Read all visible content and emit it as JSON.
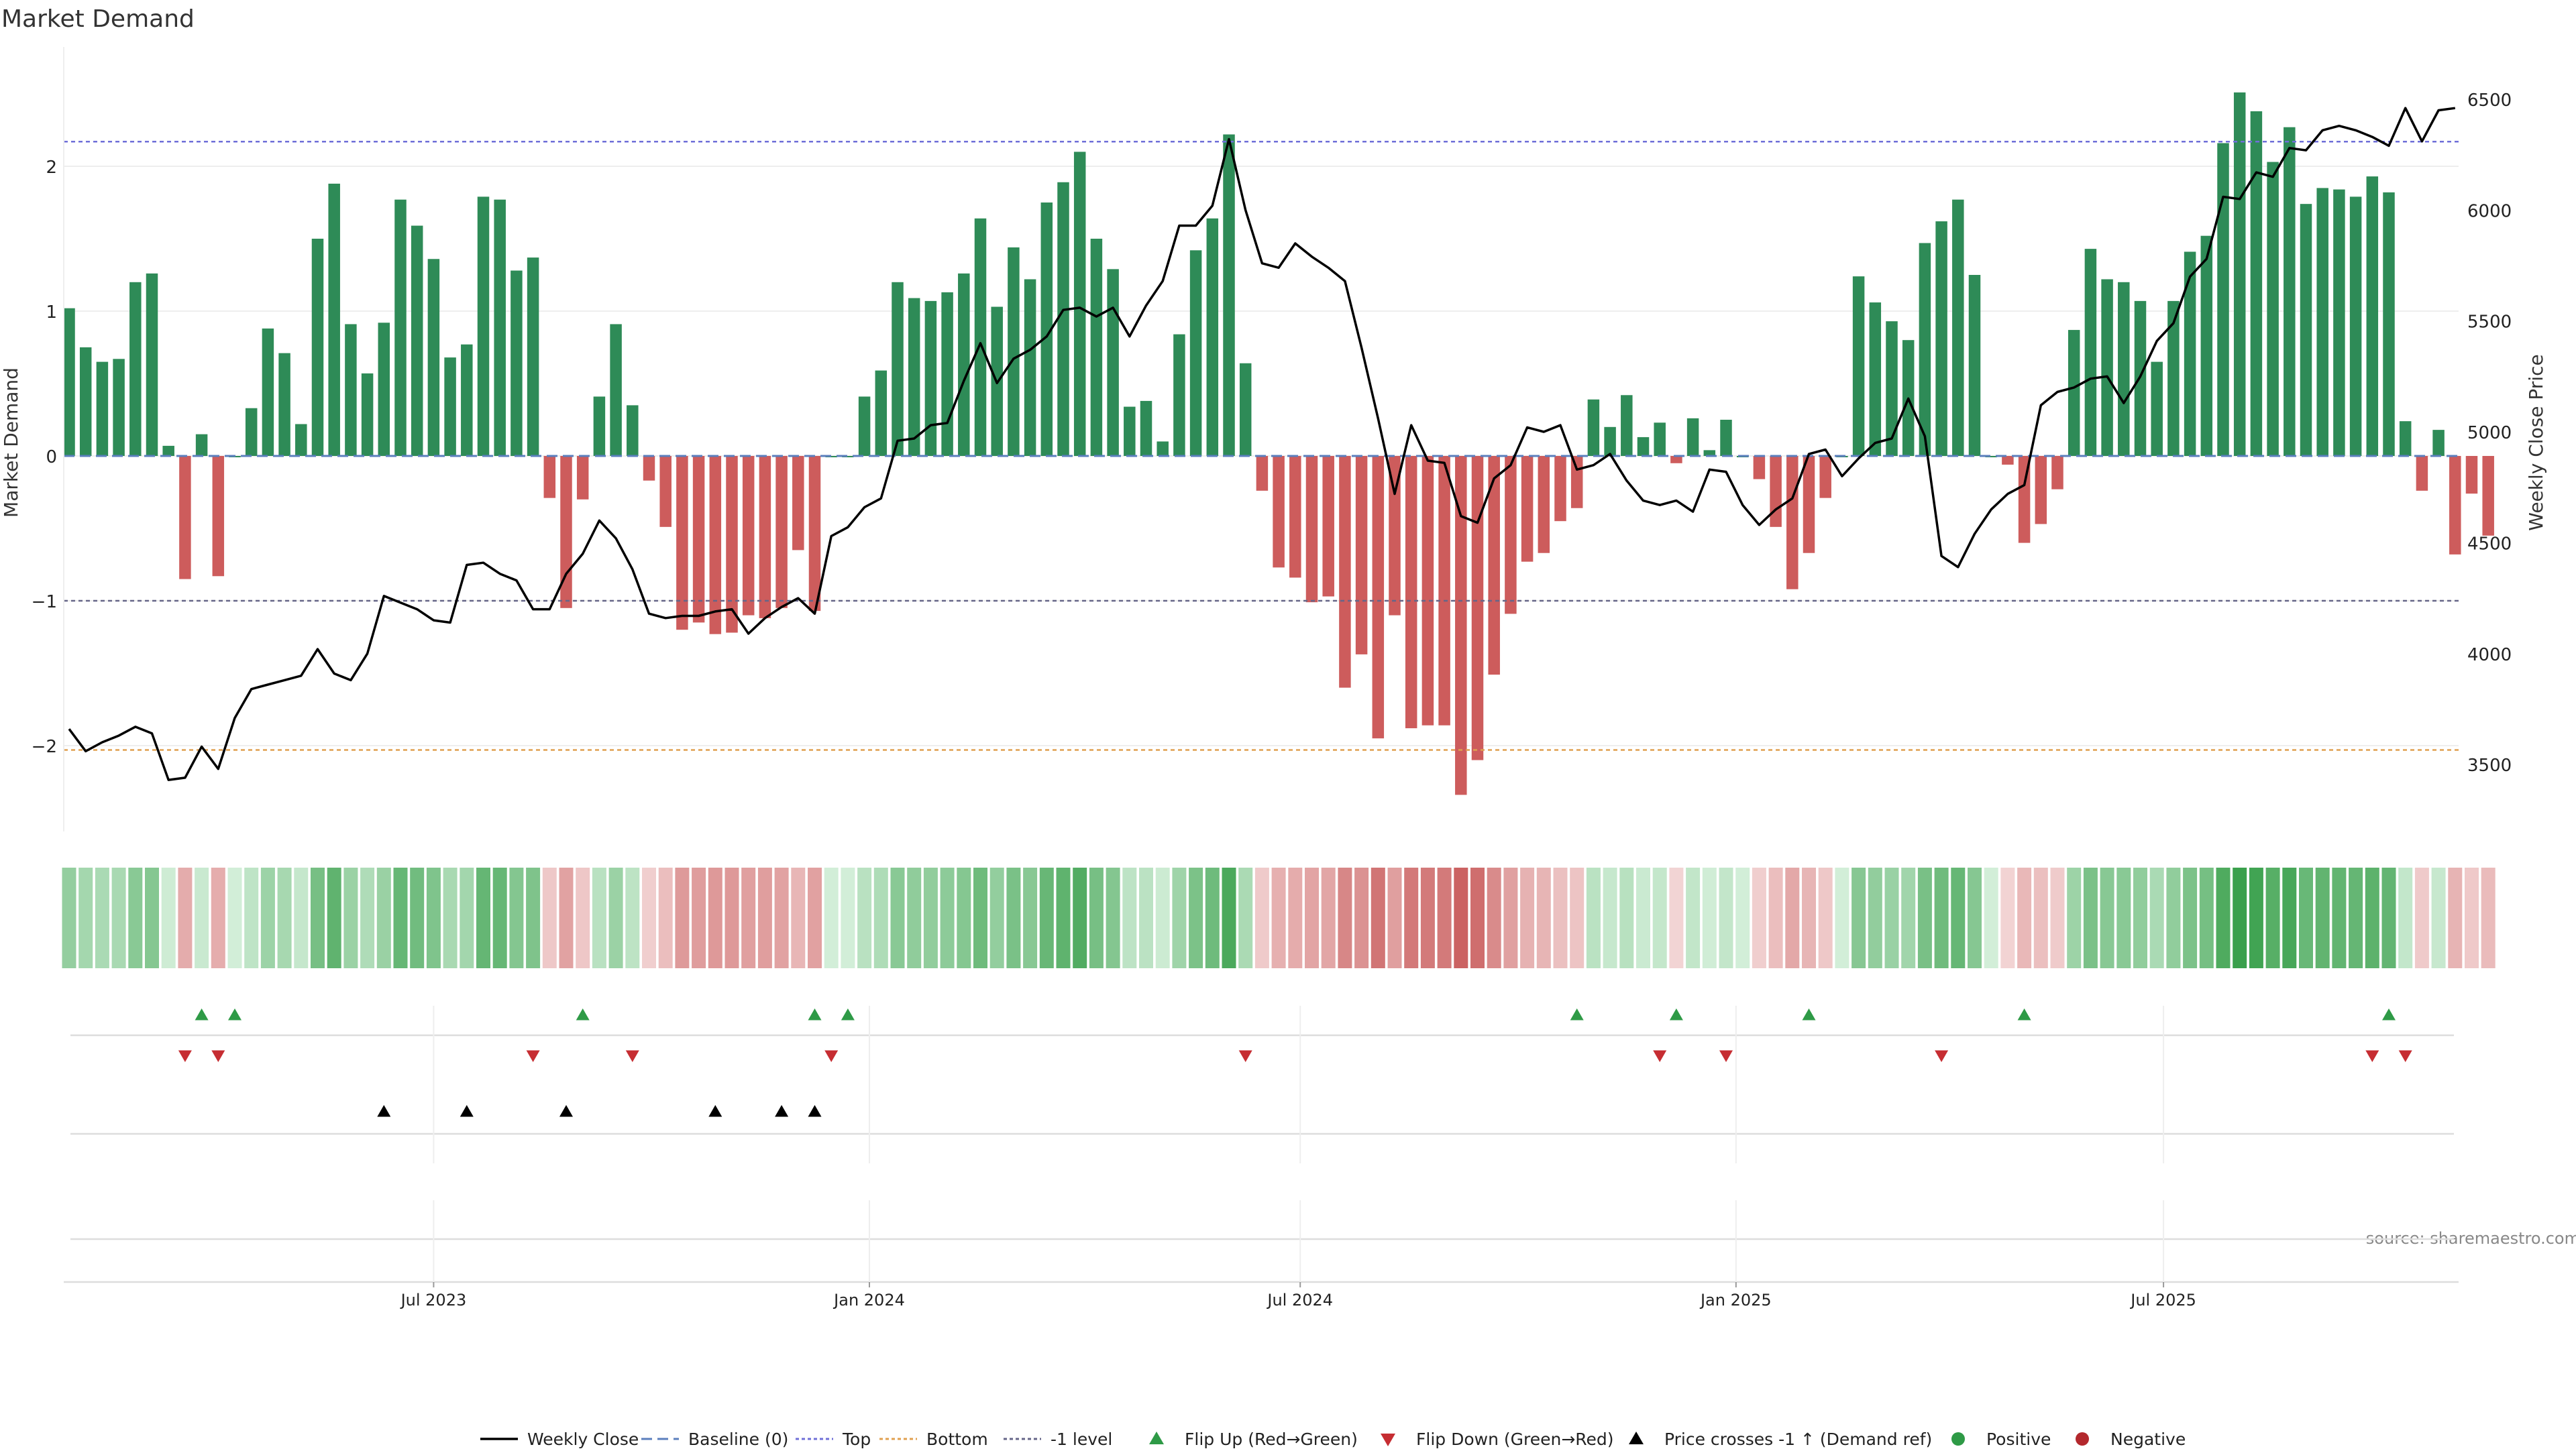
{
  "chart_data": {
    "type": "bar",
    "title": "Market Demand",
    "xlabel": "",
    "ylabel": "Market Demand",
    "ylabel_right": "Weekly Close Price",
    "ylim": [
      -2.6,
      2.8
    ],
    "ylim_right": [
      3250,
      6600
    ],
    "yticks": [
      -2,
      -1,
      0,
      1,
      2
    ],
    "yticks_right": [
      3500,
      4000,
      4500,
      5000,
      5500,
      6000,
      6500
    ],
    "grid": true,
    "reference_levels": {
      "top": 2.17,
      "bottom": -2.03,
      "minus_one": -1.0,
      "baseline": 0
    },
    "x_ticks": [
      {
        "label": "Jul 2023",
        "week": 22
      },
      {
        "label": "Jan 2024",
        "week": 48.3
      },
      {
        "label": "Jul 2024",
        "week": 74.3
      },
      {
        "label": "Jan 2025",
        "week": 100.6
      },
      {
        "label": "Jul 2025",
        "week": 126.4
      }
    ],
    "demand": [
      1.02,
      0.75,
      0.65,
      0.67,
      1.2,
      1.26,
      0.07,
      -0.85,
      0.15,
      -0.83,
      0.0,
      0.33,
      0.88,
      0.71,
      0.22,
      1.5,
      1.88,
      0.91,
      0.57,
      0.92,
      1.77,
      1.59,
      1.36,
      0.68,
      0.77,
      1.79,
      1.77,
      1.28,
      1.37,
      -0.29,
      -1.05,
      -0.3,
      0.41,
      0.91,
      0.35,
      -0.17,
      -0.49,
      -1.2,
      -1.15,
      -1.23,
      -1.22,
      -1.1,
      -1.12,
      -1.05,
      -0.65,
      -1.07,
      0.0,
      0.0,
      0.41,
      0.59,
      1.2,
      1.09,
      1.07,
      1.13,
      1.26,
      1.64,
      1.03,
      1.44,
      1.22,
      1.75,
      1.89,
      2.1,
      1.5,
      1.29,
      0.34,
      0.38,
      0.1,
      0.84,
      1.42,
      1.64,
      2.22,
      0.64,
      -0.24,
      -0.77,
      -0.84,
      -1.01,
      -0.97,
      -1.6,
      -1.37,
      -1.95,
      -1.1,
      -1.88,
      -1.86,
      -1.86,
      -2.34,
      -2.1,
      -1.51,
      -1.09,
      -0.73,
      -0.67,
      -0.45,
      -0.36,
      0.39,
      0.2,
      0.42,
      0.13,
      0.23,
      -0.05,
      0.26,
      0.04,
      0.25,
      0.0,
      -0.16,
      -0.49,
      -0.92,
      -0.67,
      -0.29,
      0.0,
      1.24,
      1.06,
      0.93,
      0.8,
      1.47,
      1.62,
      1.77,
      1.25,
      0.0,
      -0.06,
      -0.6,
      -0.47,
      -0.23,
      0.87,
      1.43,
      1.22,
      1.2,
      1.07,
      0.65,
      1.07,
      1.41,
      1.52,
      2.16,
      2.51,
      2.38,
      2.03,
      2.27,
      1.74,
      1.85,
      1.84,
      1.79,
      1.93,
      1.82,
      0.24,
      -0.24,
      0.18,
      -0.68,
      -0.26,
      -0.55
    ],
    "weekly_close": [
      3660,
      3560,
      3600,
      3630,
      3670,
      3640,
      3430,
      3440,
      3580,
      3480,
      3710,
      3840,
      3860,
      3880,
      3900,
      4020,
      3910,
      3880,
      4000,
      4260,
      4230,
      4200,
      4150,
      4140,
      4400,
      4410,
      4360,
      4330,
      4200,
      4200,
      4360,
      4450,
      4600,
      4520,
      4380,
      4180,
      4160,
      4170,
      4170,
      4190,
      4200,
      4090,
      4160,
      4210,
      4250,
      4180,
      4530,
      4570,
      4660,
      4700,
      4960,
      4970,
      5030,
      5040,
      5230,
      5400,
      5220,
      5330,
      5370,
      5430,
      5550,
      5560,
      5520,
      5560,
      5430,
      5570,
      5680,
      5930,
      5930,
      6020,
      6320,
      6000,
      5760,
      5740,
      5850,
      5790,
      5740,
      5680,
      5380,
      5060,
      4720,
      5030,
      4870,
      4860,
      4620,
      4590,
      4790,
      4850,
      5020,
      5000,
      5030,
      4830,
      4850,
      4900,
      4780,
      4690,
      4670,
      4690,
      4640,
      4830,
      4820,
      4670,
      4580,
      4650,
      4700,
      4900,
      4920,
      4800,
      4880,
      4950,
      4970,
      5150,
      4980,
      4440,
      4390,
      4540,
      4650,
      4720,
      4760,
      5120,
      5180,
      5200,
      5240,
      5250,
      5130,
      5250,
      5410,
      5490,
      5700,
      5780,
      6060,
      6050,
      6170,
      6150,
      6280,
      6270,
      6360,
      6380,
      6360,
      6330,
      6290,
      6460,
      6310,
      6450,
      6460
    ],
    "flip_up": [
      8,
      10,
      31,
      45,
      47,
      91,
      97,
      105,
      118,
      140
    ],
    "flip_down": [
      7,
      9,
      28,
      34,
      46,
      71,
      96,
      100,
      113,
      139,
      141
    ],
    "price_cross": [
      19,
      24,
      30,
      39,
      43,
      45
    ],
    "legend": [
      {
        "label": "Weekly Close",
        "kind": "line",
        "color": "#000000"
      },
      {
        "label": "Baseline (0)",
        "kind": "dash",
        "color": "#5b7fbd"
      },
      {
        "label": "Top",
        "kind": "dot",
        "color": "#6f6fd8"
      },
      {
        "label": "Bottom",
        "kind": "dot",
        "color": "#e0a050"
      },
      {
        "label": "-1 level",
        "kind": "dot",
        "color": "#666688"
      },
      {
        "label": "Flip Up (Red→Green)",
        "kind": "tri-up",
        "color": "#2e9a46"
      },
      {
        "label": "Flip Down (Green→Red)",
        "kind": "tri-down",
        "color": "#c62d32"
      },
      {
        "label": "Price crosses -1 ↑ (Demand ref)",
        "kind": "tri-up",
        "color": "#000000"
      },
      {
        "label": "Positive",
        "kind": "circle",
        "color": "#2e9a46"
      },
      {
        "label": "Negative",
        "kind": "circle",
        "color": "#b3282d"
      }
    ],
    "source": "source: sharemaestro.com",
    "colors": {
      "positive": "#2e8b57",
      "negative": "#cd5c5c",
      "flip_up": "#2e9a46",
      "flip_down": "#c62d32",
      "price_cross": "#000000",
      "close": "#000000"
    }
  }
}
